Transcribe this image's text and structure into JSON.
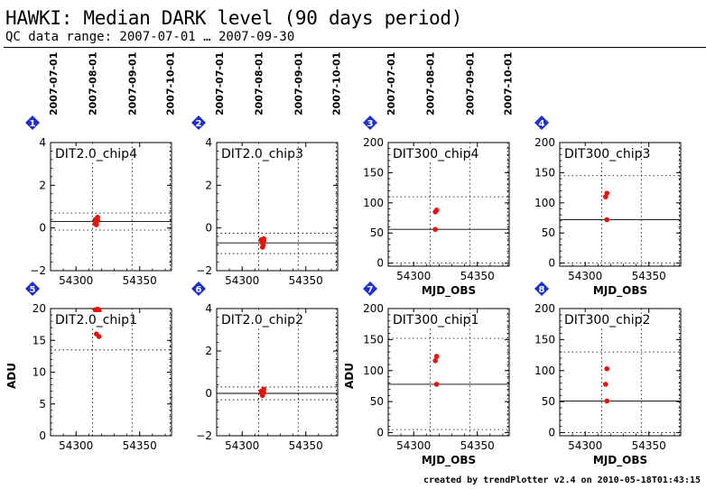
{
  "title": "HAWKI: Median DARK level (90 days period)",
  "subtitle": "QC data range: 2007-07-01 … 2007-09-30",
  "credit": "created by trendPlotter v2.4 on 2010-05-18T01:43:15",
  "colors": {
    "point": "#e8140c",
    "marker": "#1a2fd6",
    "grid": "#000000"
  },
  "chart_data": [
    {
      "type": "scatter",
      "index": "1",
      "label": "DIT2.0_chip4",
      "ylim": [
        -2,
        4
      ],
      "yticks": [
        -2,
        0,
        2,
        4
      ],
      "xlim": [
        54280,
        54375
      ],
      "xticks": [
        54300,
        54350
      ],
      "x_dates": [
        "2007-07-01",
        "2007-08-01",
        "2007-09-01",
        "2007-10-01"
      ],
      "x_date_mjd": [
        54282,
        54313,
        54344,
        54374
      ],
      "median": 0.3,
      "limits": [
        -0.1,
        0.7
      ],
      "ylabel": "",
      "xlabel": "",
      "points": [
        [
          54315,
          0.2
        ],
        [
          54315.5,
          0.25
        ],
        [
          54316,
          0.3
        ],
        [
          54316,
          0.4
        ],
        [
          54316.5,
          0.45
        ],
        [
          54317,
          0.35
        ],
        [
          54317,
          0.5
        ],
        [
          54316,
          0.15
        ],
        [
          54315,
          0.38
        ]
      ]
    },
    {
      "type": "scatter",
      "index": "2",
      "label": "DIT2.0_chip3",
      "ylim": [
        -2,
        4
      ],
      "yticks": [
        -2,
        0,
        2,
        4
      ],
      "xlim": [
        54280,
        54375
      ],
      "xticks": [
        54300,
        54350
      ],
      "x_dates": [
        "2007-07-01",
        "2007-08-01",
        "2007-09-01",
        "2007-10-01"
      ],
      "x_date_mjd": [
        54282,
        54313,
        54344,
        54374
      ],
      "median": -0.7,
      "limits": [
        -1.2,
        -0.25
      ],
      "ylabel": "",
      "xlabel": "",
      "points": [
        [
          54315,
          -0.55
        ],
        [
          54315.5,
          -0.65
        ],
        [
          54316,
          -0.7
        ],
        [
          54316.5,
          -0.8
        ],
        [
          54317,
          -0.6
        ],
        [
          54316,
          -0.9
        ],
        [
          54317,
          -0.5
        ]
      ]
    },
    {
      "type": "scatter",
      "index": "3",
      "label": "DIT300_chip4",
      "ylim": [
        -5,
        200
      ],
      "yticks": [
        0,
        50,
        100,
        150,
        200
      ],
      "xlim": [
        54280,
        54375
      ],
      "xticks": [
        54300,
        54350
      ],
      "x_dates": [
        "2007-07-01",
        "2007-08-01",
        "2007-09-01",
        "2007-10-01"
      ],
      "x_date_mjd": [
        54282,
        54313,
        54344,
        54374
      ],
      "median": 56,
      "limits": [
        0,
        110
      ],
      "ylabel": "",
      "xlabel": "MJD_OBS",
      "points": [
        [
          54317,
          85
        ],
        [
          54318,
          88
        ],
        [
          54317,
          56
        ]
      ]
    },
    {
      "type": "scatter",
      "index": "4",
      "label": "DIT300_chip3",
      "ylim": [
        -5,
        200
      ],
      "yticks": [
        0,
        50,
        100,
        150,
        200
      ],
      "xlim": [
        54280,
        54375
      ],
      "xticks": [
        54300,
        54350
      ],
      "x_dates": [],
      "x_date_mjd": [],
      "median": 72,
      "limits": [
        0,
        145
      ],
      "ylabel": "",
      "xlabel": "MJD_OBS",
      "points": [
        [
          54316,
          110
        ],
        [
          54317,
          116
        ],
        [
          54317,
          72
        ]
      ]
    },
    {
      "type": "scatter",
      "index": "5",
      "label": "DIT2.0_chip1",
      "ylim": [
        0,
        20
      ],
      "yticks": [
        0,
        5,
        10,
        15,
        20
      ],
      "xlim": [
        54280,
        54375
      ],
      "xticks": [
        54300,
        54350
      ],
      "x_dates": [],
      "x_date_mjd": [],
      "median": null,
      "limits": [
        13.5
      ],
      "ylabel": "ADU",
      "xlabel": "",
      "points": [
        [
          54315,
          19.8
        ],
        [
          54316,
          19.6
        ],
        [
          54317,
          19.9
        ],
        [
          54318,
          19.7
        ],
        [
          54316,
          16.0
        ],
        [
          54318,
          15.6
        ]
      ]
    },
    {
      "type": "scatter",
      "index": "6",
      "label": "DIT2.0_chip2",
      "ylim": [
        -2,
        4
      ],
      "yticks": [
        -2,
        0,
        2,
        4
      ],
      "xlim": [
        54280,
        54375
      ],
      "xticks": [
        54300,
        54350
      ],
      "x_dates": [],
      "x_date_mjd": [],
      "median": 0.0,
      "limits": [
        -0.3,
        0.3
      ],
      "ylabel": "",
      "xlabel": "",
      "points": [
        [
          54315,
          0.1
        ],
        [
          54315.5,
          0.0
        ],
        [
          54316,
          -0.1
        ],
        [
          54316.5,
          0.15
        ],
        [
          54317,
          0.05
        ],
        [
          54316,
          -0.05
        ],
        [
          54317,
          0.2
        ]
      ]
    },
    {
      "type": "scatter",
      "index": "7",
      "label": "DIT300_chip1",
      "ylim": [
        -5,
        200
      ],
      "yticks": [
        0,
        50,
        100,
        150,
        200
      ],
      "xlim": [
        54280,
        54375
      ],
      "xticks": [
        54300,
        54350
      ],
      "x_dates": [],
      "x_date_mjd": [],
      "median": 78,
      "limits": [
        5,
        152
      ],
      "ylabel": "ADU",
      "xlabel": "MJD_OBS",
      "points": [
        [
          54317,
          116
        ],
        [
          54318,
          123
        ],
        [
          54318,
          78
        ]
      ]
    },
    {
      "type": "scatter",
      "index": "8",
      "label": "DIT300_chip2",
      "ylim": [
        -5,
        200
      ],
      "yticks": [
        0,
        50,
        100,
        150,
        200
      ],
      "xlim": [
        54280,
        54375
      ],
      "xticks": [
        54300,
        54350
      ],
      "x_dates": [],
      "x_date_mjd": [],
      "median": 51,
      "limits": [
        0,
        130
      ],
      "ylabel": "",
      "xlabel": "MJD_OBS",
      "points": [
        [
          54316,
          78
        ],
        [
          54317,
          103
        ],
        [
          54317,
          51
        ]
      ]
    }
  ]
}
